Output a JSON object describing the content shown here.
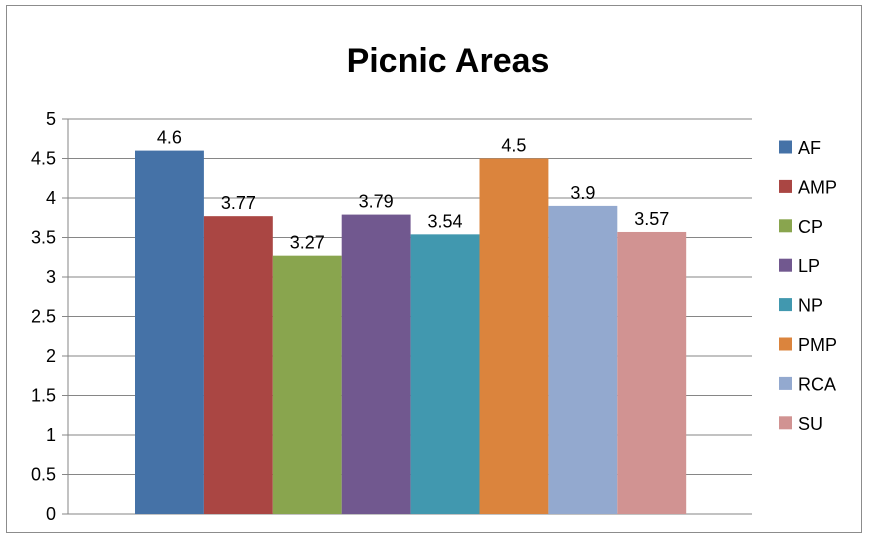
{
  "chart_data": {
    "type": "bar",
    "title": "Picnic Areas",
    "xlabel": "",
    "ylabel": "",
    "ylim": [
      0,
      5
    ],
    "yticks": [
      "0",
      "0.5",
      "1",
      "1.5",
      "2",
      "2.5",
      "3",
      "3.5",
      "4",
      "4.5",
      "5"
    ],
    "grid": true,
    "legend_position": "right",
    "series": [
      {
        "name": "AF",
        "value": 4.6,
        "label": "4.6",
        "color": "#4572a7"
      },
      {
        "name": "AMP",
        "value": 3.77,
        "label": "3.77",
        "color": "#aa4643"
      },
      {
        "name": "CP",
        "value": 3.27,
        "label": "3.27",
        "color": "#89a54e"
      },
      {
        "name": "LP",
        "value": 3.79,
        "label": "3.79",
        "color": "#71588f"
      },
      {
        "name": "NP",
        "value": 3.54,
        "label": "3.54",
        "color": "#4198af"
      },
      {
        "name": "PMP",
        "value": 4.5,
        "label": "4.5",
        "color": "#db843d"
      },
      {
        "name": "RCA",
        "value": 3.9,
        "label": "3.9",
        "color": "#93a9cf"
      },
      {
        "name": "SU",
        "value": 3.57,
        "label": "3.57",
        "color": "#d19392"
      }
    ]
  }
}
